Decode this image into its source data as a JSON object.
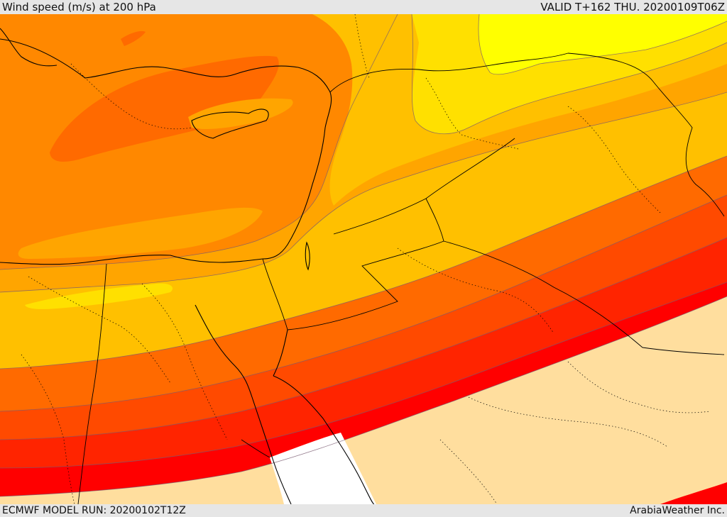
{
  "header": {
    "title": "Wind speed (m/s) at 200 hPa",
    "valid_time": "VALID T+162 THU. 20200109T06Z"
  },
  "footer": {
    "model_run": "ECMWF MODEL RUN: 20200102T12Z",
    "credit": "ArabiaWeather Inc."
  },
  "map": {
    "colors": {
      "very_light": "#ffde9e",
      "red": "#ff0000",
      "red_orange": "#ff2400",
      "orange_red": "#ff4a00",
      "dark_orange": "#ff6a00",
      "orange": "#ff8800",
      "amber": "#ffa500",
      "gold": "#ffc000",
      "yellow": "#ffe000",
      "bright_yellow": "#ffff00",
      "calm_white": "#ffffff"
    }
  }
}
